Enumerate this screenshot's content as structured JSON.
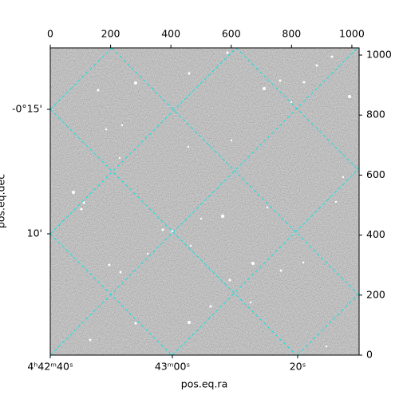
{
  "chart_data": {
    "type": "image",
    "x_label": "pos.eq.ra",
    "y_label": "pos.eq.dec",
    "ra_tick_labels": [
      "4ʰ42ᵐ40ˢ",
      "43ᵐ00ˢ",
      "20ˢ"
    ],
    "dec_tick_labels": [
      "-0°15'",
      "10'"
    ],
    "xlim": [
      0,
      1024
    ],
    "ylim": [
      0,
      1024
    ],
    "xticks": [
      0,
      200,
      400,
      600,
      800,
      1000
    ],
    "yticks": [
      0,
      200,
      400,
      600,
      800,
      1000
    ],
    "grid_color": "#00e5e5"
  }
}
